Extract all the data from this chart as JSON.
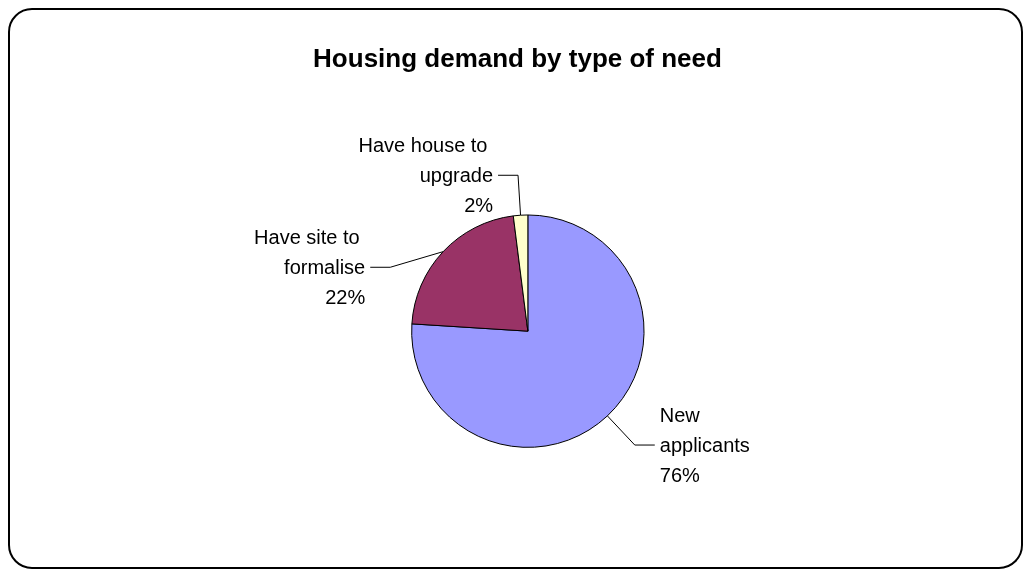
{
  "chart_data": {
    "type": "pie",
    "title": "Housing demand by type of need",
    "categories": [
      "New applicants",
      "Have site to formalise",
      "Have house to upgrade"
    ],
    "values": [
      76,
      22,
      2
    ],
    "colors": [
      "#9999ff",
      "#993366",
      "#ffffcc"
    ],
    "value_labels": [
      "76%",
      "22%",
      "2%"
    ]
  }
}
